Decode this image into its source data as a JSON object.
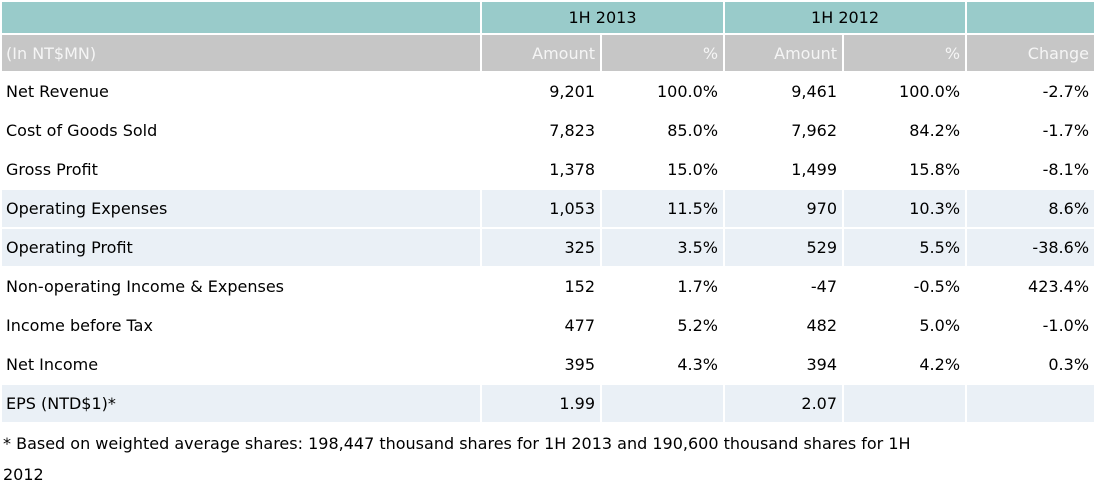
{
  "table": {
    "unit_label": "(In NT$MN)",
    "col_groups": [
      {
        "label": "1H 2013"
      },
      {
        "label": "1H 2012"
      }
    ],
    "sub_headers": [
      "Amount",
      "%",
      "Amount",
      "%",
      "Change"
    ],
    "rows": [
      {
        "label": "Net Revenue",
        "values": [
          "9,201",
          "100.0%",
          "9,461",
          "100.0%",
          "-2.7%"
        ],
        "highlight": false
      },
      {
        "label": "Cost of Goods Sold",
        "values": [
          "7,823",
          "85.0%",
          "7,962",
          "84.2%",
          "-1.7%"
        ],
        "highlight": false
      },
      {
        "label": "Gross Profit",
        "values": [
          "1,378",
          "15.0%",
          "1,499",
          "15.8%",
          "-8.1%"
        ],
        "highlight": false
      },
      {
        "label": "Operating Expenses",
        "values": [
          "1,053",
          "11.5%",
          "970",
          "10.3%",
          "8.6%"
        ],
        "highlight": true
      },
      {
        "label": "Operating Profit",
        "values": [
          "325",
          "3.5%",
          "529",
          "5.5%",
          "-38.6%"
        ],
        "highlight": true
      },
      {
        "label": "Non-operating Income & Expenses",
        "values": [
          "152",
          "1.7%",
          "-47",
          "-0.5%",
          "423.4%"
        ],
        "highlight": false
      },
      {
        "label": "Income before Tax",
        "values": [
          "477",
          "5.2%",
          "482",
          "5.0%",
          "-1.0%"
        ],
        "highlight": false
      },
      {
        "label": "Net Income",
        "values": [
          "395",
          "4.3%",
          "394",
          "4.2%",
          "0.3%"
        ],
        "highlight": false
      },
      {
        "label": "EPS (NTD$1)*",
        "values": [
          "1.99",
          "",
          "2.07",
          "",
          ""
        ],
        "highlight": true
      }
    ]
  },
  "footnote": {
    "lines": [
      "* Based on weighted average shares: 198,447 thousand shares for 1H 2013 and 190,600 thousand shares for 1H",
      "2012"
    ]
  },
  "colors": {
    "header_teal": "#99CBCA",
    "header_gray": "#C6C6C6",
    "header_gray_text": "#F5F5F5",
    "row_highlight": "#EAF0F6"
  }
}
